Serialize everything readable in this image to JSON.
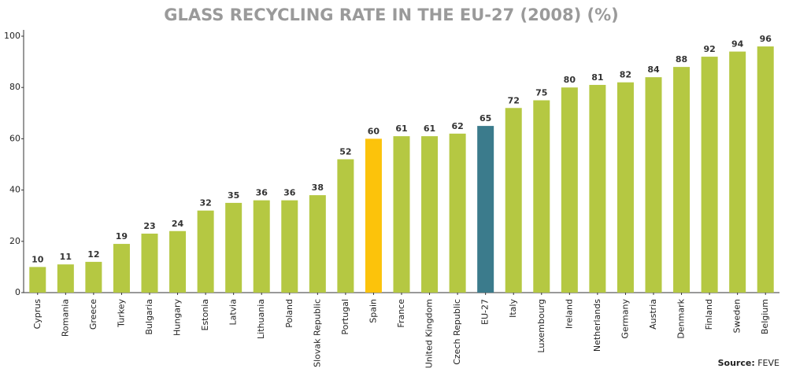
{
  "chart_data": {
    "type": "bar",
    "title": "GLASS RECYCLING RATE IN THE EU-27 (2008) (%)",
    "categories": [
      "Cyprus",
      "Romania",
      "Greece",
      "Turkey",
      "Bulgaria",
      "Hungary",
      "Estonia",
      "Latvia",
      "Lithuania",
      "Poland",
      "Slovak Republic",
      "Portugal",
      "Spain",
      "France",
      "United Kingdom",
      "Czech Republic",
      "EU-27",
      "Italy",
      "Luxembourg",
      "Ireland",
      "Netherlands",
      "Germany",
      "Austria",
      "Denmark",
      "Finland",
      "Sweden",
      "Belgium"
    ],
    "values": [
      10,
      11,
      12,
      19,
      23,
      24,
      32,
      35,
      36,
      36,
      38,
      52,
      60,
      61,
      61,
      62,
      65,
      72,
      75,
      80,
      81,
      82,
      84,
      88,
      92,
      94,
      96
    ],
    "colors": [
      "#b5c842",
      "#b5c842",
      "#b5c842",
      "#b5c842",
      "#b5c842",
      "#b5c842",
      "#b5c842",
      "#b5c842",
      "#b5c842",
      "#b5c842",
      "#b5c842",
      "#b5c842",
      "#fcc30b",
      "#b5c842",
      "#b5c842",
      "#b5c842",
      "#3b7b8c",
      "#b5c842",
      "#b5c842",
      "#b5c842",
      "#b5c842",
      "#b5c842",
      "#b5c842",
      "#b5c842",
      "#b5c842",
      "#b5c842",
      "#b5c842"
    ],
    "ylim": [
      0,
      100
    ],
    "yticks": [
      0,
      20,
      40,
      60,
      80,
      100
    ],
    "grid": false,
    "source_label": "Source:",
    "source": "FEVE"
  }
}
